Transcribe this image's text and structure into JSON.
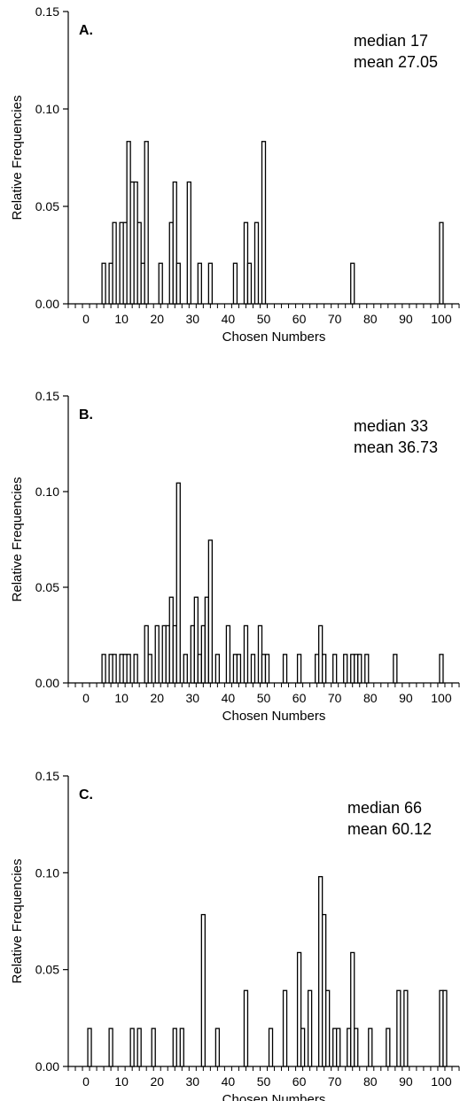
{
  "chart_data": [
    {
      "type": "bar",
      "panel_label": "A.",
      "annotation_lines": [
        "median 17",
        "mean 27.05"
      ],
      "xlabel": "Chosen Numbers",
      "ylabel": "Relative Frequencies",
      "xlim": [
        -5,
        105
      ],
      "ylim": [
        0,
        0.15
      ],
      "xticks": [
        0,
        10,
        20,
        30,
        40,
        50,
        60,
        70,
        80,
        90,
        100
      ],
      "yticks": [
        "0.00",
        "0.05",
        "0.10",
        "0.15"
      ],
      "x": [
        5,
        7,
        8,
        10,
        11,
        12,
        13,
        14,
        15,
        16,
        17,
        21,
        24,
        25,
        26,
        29,
        32,
        35,
        42,
        45,
        46,
        48,
        50,
        75,
        100
      ],
      "values": [
        0.0208,
        0.0208,
        0.0417,
        0.0417,
        0.0417,
        0.0833,
        0.0625,
        0.0625,
        0.0417,
        0.0208,
        0.0833,
        0.0208,
        0.0417,
        0.0625,
        0.0208,
        0.0625,
        0.0208,
        0.0208,
        0.0208,
        0.0417,
        0.0208,
        0.0417,
        0.0833,
        0.0208,
        0.0417
      ]
    },
    {
      "type": "bar",
      "panel_label": "B.",
      "annotation_lines": [
        "median 33",
        "mean 36.73"
      ],
      "xlabel": "Chosen Numbers",
      "ylabel": "Relative Frequencies",
      "xlim": [
        -5,
        105
      ],
      "ylim": [
        0,
        0.15
      ],
      "xticks": [
        0,
        10,
        20,
        30,
        40,
        50,
        60,
        70,
        80,
        90,
        100
      ],
      "yticks": [
        "0.00",
        "0.05",
        "0.10",
        "0.15"
      ],
      "x": [
        5,
        7,
        8,
        10,
        11,
        12,
        14,
        17,
        18,
        20,
        22,
        23,
        24,
        25,
        26,
        28,
        30,
        31,
        32,
        33,
        34,
        35,
        37,
        40,
        42,
        43,
        45,
        47,
        49,
        50,
        51,
        56,
        60,
        65,
        66,
        67,
        70,
        73,
        75,
        76,
        77,
        79,
        87,
        100
      ],
      "values": [
        0.0149,
        0.0149,
        0.0149,
        0.0149,
        0.0149,
        0.0149,
        0.0149,
        0.0299,
        0.0149,
        0.0299,
        0.0299,
        0.0299,
        0.0448,
        0.0299,
        0.1045,
        0.0149,
        0.0299,
        0.0448,
        0.0149,
        0.0299,
        0.0448,
        0.0746,
        0.0149,
        0.0299,
        0.0149,
        0.0149,
        0.0299,
        0.0149,
        0.0299,
        0.0149,
        0.0149,
        0.0149,
        0.0149,
        0.0149,
        0.0299,
        0.0149,
        0.0149,
        0.0149,
        0.0149,
        0.0149,
        0.0149,
        0.0149,
        0.0149,
        0.0149
      ]
    },
    {
      "type": "bar",
      "panel_label": "C.",
      "annotation_lines": [
        "median 66",
        "mean 60.12"
      ],
      "xlabel": "Chosen Numbers",
      "ylabel": "Relative Frequencies",
      "xlim": [
        -5,
        105
      ],
      "ylim": [
        0,
        0.15
      ],
      "xticks": [
        0,
        10,
        20,
        30,
        40,
        50,
        60,
        70,
        80,
        90,
        100
      ],
      "yticks": [
        "0.00",
        "0.05",
        "0.10",
        "0.15"
      ],
      "x": [
        1,
        7,
        13,
        15,
        19,
        25,
        27,
        33,
        37,
        45,
        52,
        56,
        60,
        61,
        63,
        66,
        67,
        68,
        70,
        71,
        74,
        75,
        76,
        80,
        85,
        88,
        90,
        100,
        101
      ],
      "values": [
        0.0196,
        0.0196,
        0.0196,
        0.0196,
        0.0196,
        0.0196,
        0.0196,
        0.0784,
        0.0196,
        0.0392,
        0.0196,
        0.0392,
        0.0588,
        0.0196,
        0.0392,
        0.098,
        0.0784,
        0.0392,
        0.0196,
        0.0196,
        0.0196,
        0.0588,
        0.0196,
        0.0196,
        0.0196,
        0.0392,
        0.0392,
        0.0392,
        0.0392
      ]
    }
  ]
}
